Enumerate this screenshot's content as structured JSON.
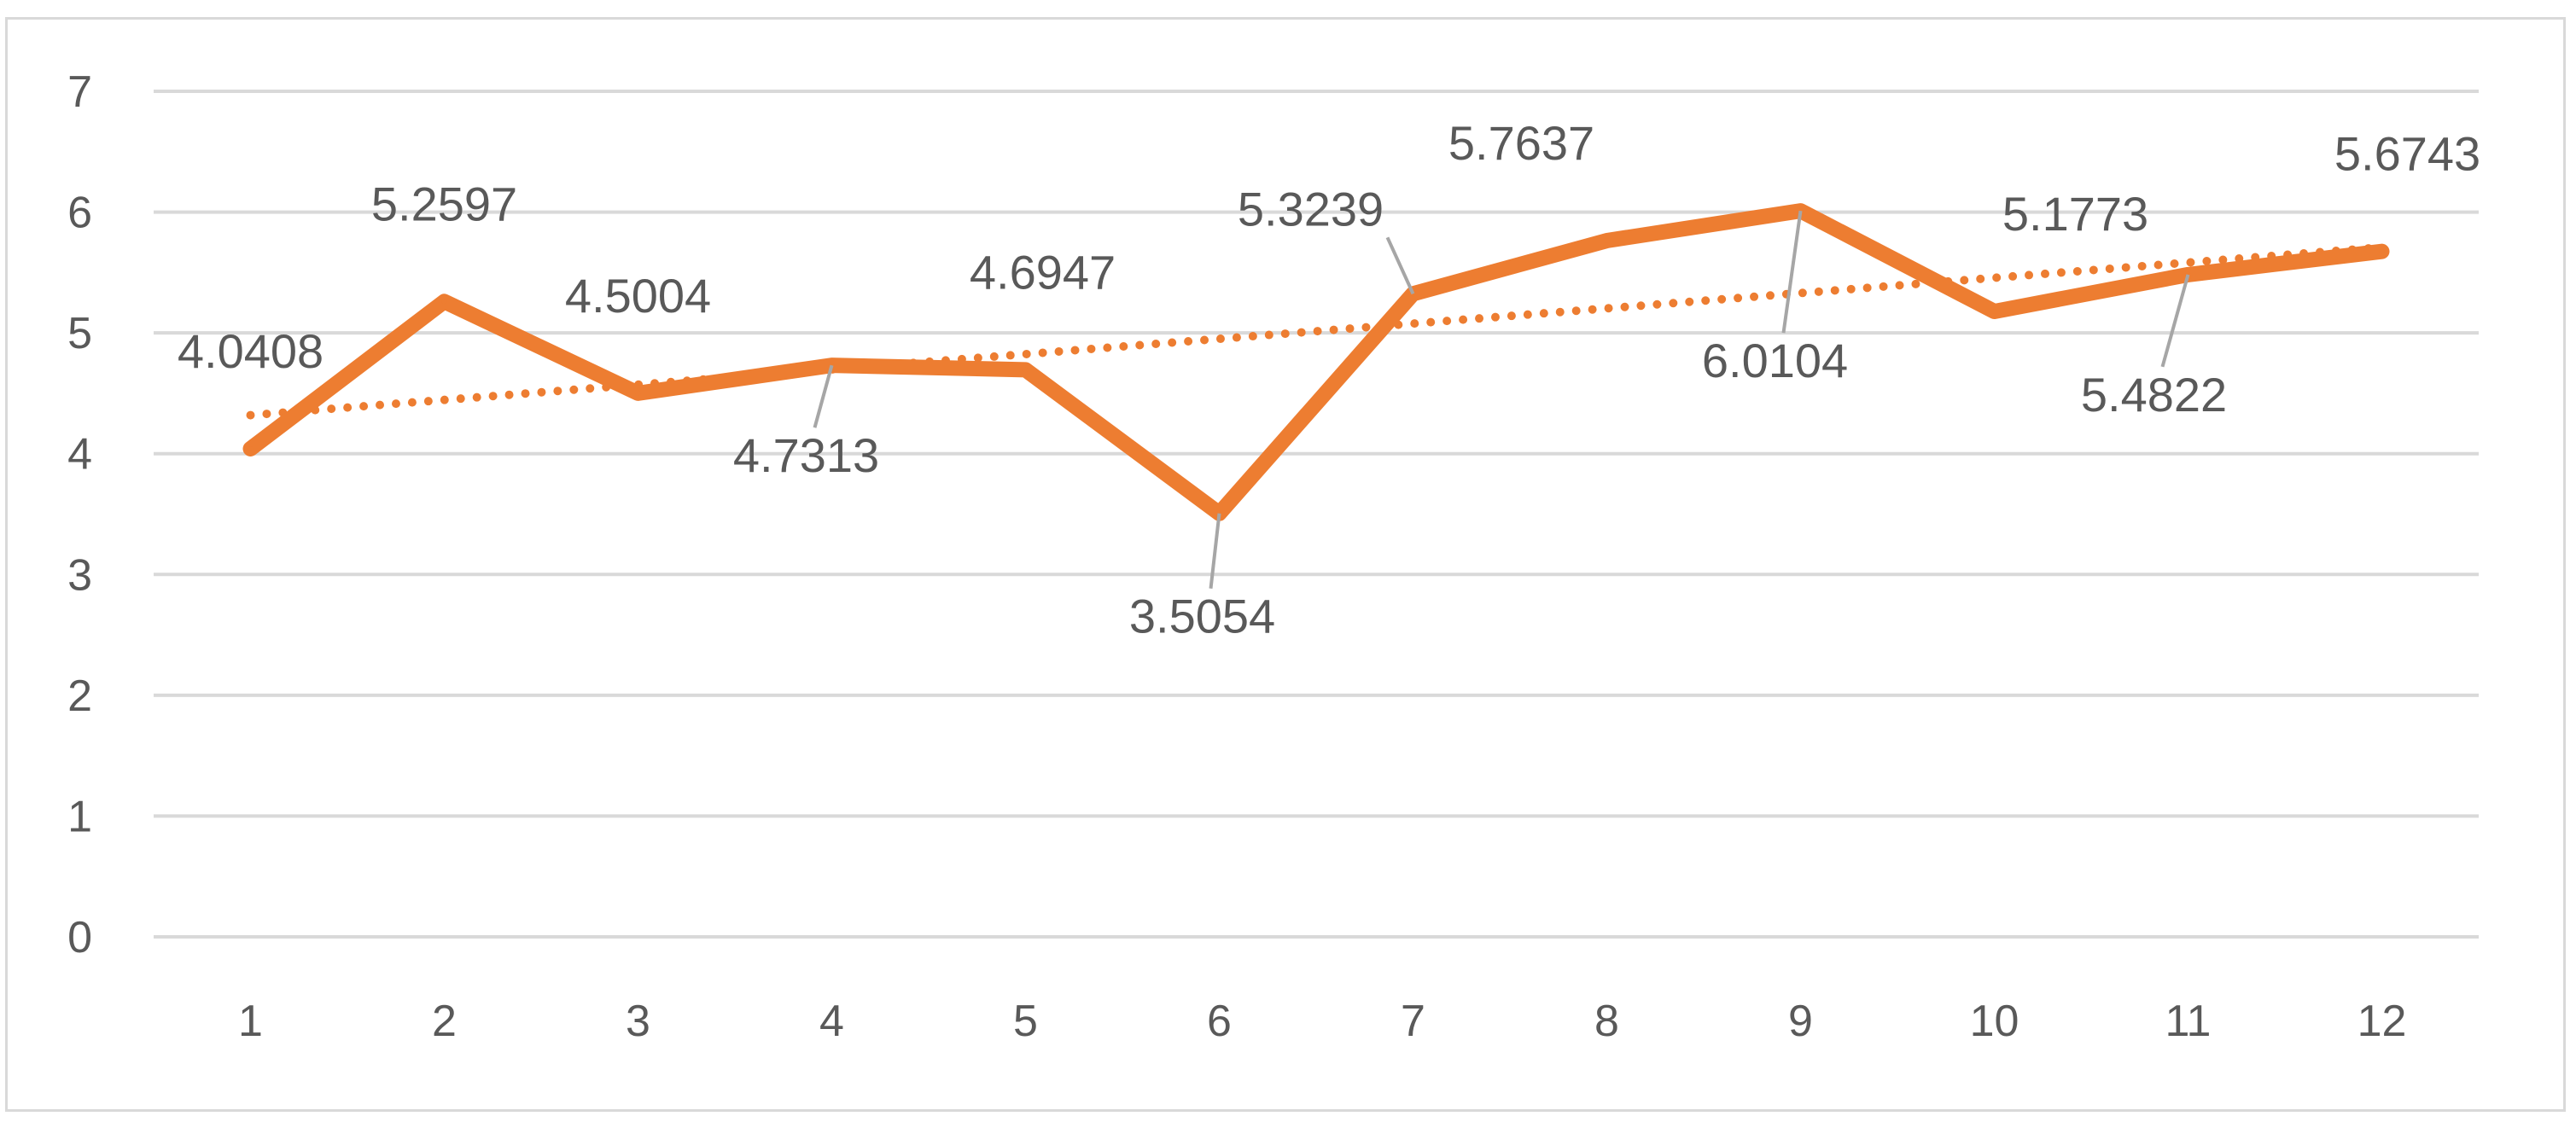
{
  "chart_data": {
    "type": "line",
    "categories": [
      "1",
      "2",
      "3",
      "4",
      "5",
      "6",
      "7",
      "8",
      "9",
      "10",
      "11",
      "12"
    ],
    "series": [
      {
        "values": [
          4.0408,
          5.2597,
          4.5004,
          4.7313,
          4.6947,
          3.5054,
          5.3239,
          5.7637,
          6.0104,
          5.1773,
          5.4822,
          5.6743
        ],
        "color": "#ed7d31"
      }
    ],
    "data_labels": [
      "4.0408",
      "5.2597",
      "4.5004",
      "4.7313",
      "4.6947",
      "3.5054",
      "5.3239",
      "5.7637",
      "6.0104",
      "5.1773",
      "5.4822",
      "5.6743"
    ],
    "trendline": {
      "type": "linear",
      "style": "dotted",
      "color": "#ed7d31"
    },
    "y_ticks": [
      "0",
      "1",
      "2",
      "3",
      "4",
      "5",
      "6",
      "7"
    ],
    "ylim": [
      0,
      7
    ],
    "grid": true,
    "legend": "none",
    "title": "",
    "xlabel": "",
    "ylabel": "",
    "gridline_color": "#d9d9d9",
    "label_color": "#595959"
  }
}
